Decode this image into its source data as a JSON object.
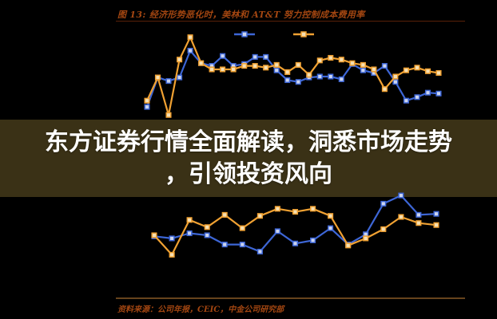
{
  "page": {
    "background": "#000000"
  },
  "figure": {
    "title": "图 13:  经济形势恶化时，美林和 AT&T 努力控制成本费用率",
    "title_color": "#a34611",
    "source_note": "资料来源：公司年报，CEIC，中金公司研究部"
  },
  "banner": {
    "line1": "东方证券行情全面解读，洞悉市场走势",
    "line2": "，引领投资风向",
    "background": "#3a3116",
    "text_color": "#ffffff"
  },
  "chart_data": [
    {
      "type": "line",
      "title": "图 13: 经济形势恶化时，美林和 AT&T 努力控制成本费用率",
      "xlabel": "",
      "ylabel": "",
      "ylim": [
        0,
        100
      ],
      "axes_visible": false,
      "grid": false,
      "legend": {
        "position": "top-center",
        "labels": [
          "",
          ""
        ]
      },
      "series": [
        {
          "name": "blue",
          "color": "#3d66d6",
          "marker_fill": "#ccd5ef",
          "values": [
            16,
            49,
            45,
            49,
            79,
            65,
            62,
            73,
            62,
            64,
            72,
            72,
            57,
            46,
            44,
            49,
            50,
            50,
            47,
            64,
            57,
            54,
            62,
            44,
            23,
            27,
            32,
            31
          ]
        },
        {
          "name": "orange",
          "color": "#f0a132",
          "marker_fill": "#f6e0b4",
          "values": [
            23,
            49,
            7,
            69,
            94,
            65,
            58,
            58,
            58,
            62,
            62,
            60,
            63,
            55,
            63,
            52,
            68,
            71,
            69,
            65,
            63,
            58,
            36,
            50,
            57,
            60,
            56,
            54
          ]
        }
      ]
    },
    {
      "type": "line",
      "title": "",
      "xlabel": "",
      "ylabel": "",
      "ylim": [
        0,
        100
      ],
      "axes_visible": false,
      "grid": false,
      "legend": {
        "position": "none",
        "labels": []
      },
      "series": [
        {
          "name": "blue",
          "color": "#3d66d6",
          "marker_fill": "#ccd5ef",
          "values": [
            56,
            54,
            59,
            57,
            48,
            48,
            41,
            61,
            49,
            52,
            64,
            48,
            58,
            88,
            96,
            77,
            78
          ]
        },
        {
          "name": "orange",
          "color": "#f0a132",
          "marker_fill": "#f6e0b4",
          "values": [
            57,
            38,
            72,
            65,
            77,
            64,
            76,
            83,
            80,
            83,
            76,
            47,
            54,
            63,
            75,
            69,
            67
          ]
        }
      ]
    }
  ]
}
